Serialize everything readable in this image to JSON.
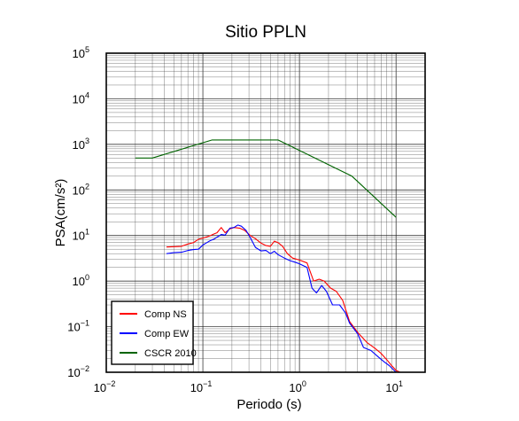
{
  "chart_data": {
    "type": "line",
    "title": "Sitio PPLN",
    "xlabel": "Periodo (s)",
    "ylabel": "PSA(cm/s²)",
    "xscale": "log",
    "yscale": "log",
    "xlim": [
      0.01,
      20
    ],
    "ylim": [
      0.01,
      100000
    ],
    "grid": true,
    "legend_position": "bottom-left",
    "x_ticks": [
      {
        "base": "10",
        "exp": "−2",
        "value": 0.01
      },
      {
        "base": "10",
        "exp": "−1",
        "value": 0.1
      },
      {
        "base": "10",
        "exp": "0",
        "value": 1
      },
      {
        "base": "10",
        "exp": "1",
        "value": 10
      }
    ],
    "y_ticks": [
      {
        "base": "10",
        "exp": "−2",
        "value": 0.01
      },
      {
        "base": "10",
        "exp": "−1",
        "value": 0.1
      },
      {
        "base": "10",
        "exp": "0",
        "value": 1
      },
      {
        "base": "10",
        "exp": "1",
        "value": 10
      },
      {
        "base": "10",
        "exp": "2",
        "value": 100
      },
      {
        "base": "10",
        "exp": "3",
        "value": 1000
      },
      {
        "base": "10",
        "exp": "4",
        "value": 10000
      },
      {
        "base": "10",
        "exp": "5",
        "value": 100000
      }
    ],
    "series": [
      {
        "name": "Comp NS",
        "color": "#ff0000",
        "points": [
          [
            0.042,
            5.6
          ],
          [
            0.05,
            5.7
          ],
          [
            0.06,
            5.8
          ],
          [
            0.07,
            6.5
          ],
          [
            0.08,
            7.0
          ],
          [
            0.09,
            8.3
          ],
          [
            0.1,
            8.8
          ],
          [
            0.11,
            9.3
          ],
          [
            0.12,
            10.0
          ],
          [
            0.13,
            10.8
          ],
          [
            0.14,
            11.5
          ],
          [
            0.155,
            15.0
          ],
          [
            0.17,
            11.5
          ],
          [
            0.19,
            14.0
          ],
          [
            0.21,
            15.0
          ],
          [
            0.24,
            14.5
          ],
          [
            0.27,
            13.0
          ],
          [
            0.31,
            10.0
          ],
          [
            0.35,
            8.5
          ],
          [
            0.4,
            6.8
          ],
          [
            0.45,
            6.0
          ],
          [
            0.5,
            5.8
          ],
          [
            0.55,
            7.5
          ],
          [
            0.6,
            7.0
          ],
          [
            0.67,
            5.8
          ],
          [
            0.75,
            4.0
          ],
          [
            0.85,
            3.2
          ],
          [
            1.0,
            2.9
          ],
          [
            1.2,
            2.5
          ],
          [
            1.4,
            1.0
          ],
          [
            1.6,
            1.1
          ],
          [
            1.8,
            1.0
          ],
          [
            2.1,
            0.7
          ],
          [
            2.4,
            0.6
          ],
          [
            2.8,
            0.38
          ],
          [
            3.3,
            0.13
          ],
          [
            4.0,
            0.075
          ],
          [
            5.0,
            0.045
          ],
          [
            6.0,
            0.034
          ],
          [
            7.0,
            0.026
          ],
          [
            8.0,
            0.019
          ],
          [
            9.0,
            0.014
          ],
          [
            10.0,
            0.011
          ],
          [
            11.0,
            0.01
          ]
        ]
      },
      {
        "name": "Comp EW",
        "color": "#0000ff",
        "points": [
          [
            0.042,
            4.0
          ],
          [
            0.05,
            4.2
          ],
          [
            0.06,
            4.3
          ],
          [
            0.07,
            4.7
          ],
          [
            0.08,
            4.9
          ],
          [
            0.09,
            5.0
          ],
          [
            0.1,
            6.2
          ],
          [
            0.11,
            7.0
          ],
          [
            0.12,
            7.8
          ],
          [
            0.13,
            8.3
          ],
          [
            0.14,
            9.2
          ],
          [
            0.155,
            10.5
          ],
          [
            0.17,
            10.2
          ],
          [
            0.19,
            14.5
          ],
          [
            0.21,
            15.0
          ],
          [
            0.23,
            17.0
          ],
          [
            0.25,
            16.0
          ],
          [
            0.28,
            13.0
          ],
          [
            0.31,
            9.0
          ],
          [
            0.35,
            5.5
          ],
          [
            0.4,
            4.6
          ],
          [
            0.45,
            4.7
          ],
          [
            0.5,
            4.0
          ],
          [
            0.55,
            4.5
          ],
          [
            0.6,
            3.8
          ],
          [
            0.7,
            3.2
          ],
          [
            0.8,
            2.8
          ],
          [
            0.9,
            2.6
          ],
          [
            1.0,
            2.4
          ],
          [
            1.2,
            2.0
          ],
          [
            1.35,
            0.7
          ],
          [
            1.5,
            0.55
          ],
          [
            1.7,
            0.8
          ],
          [
            1.9,
            0.6
          ],
          [
            2.2,
            0.3
          ],
          [
            2.6,
            0.3
          ],
          [
            3.0,
            0.2
          ],
          [
            3.3,
            0.12
          ],
          [
            4.0,
            0.07
          ],
          [
            4.6,
            0.035
          ],
          [
            5.5,
            0.03
          ],
          [
            6.5,
            0.022
          ],
          [
            7.5,
            0.017
          ],
          [
            8.5,
            0.014
          ],
          [
            10.0,
            0.01
          ]
        ]
      },
      {
        "name": "CSCR 2010",
        "color": "#006400",
        "points": [
          [
            0.02,
            500
          ],
          [
            0.03,
            500
          ],
          [
            0.125,
            1250
          ],
          [
            0.6,
            1250
          ],
          [
            3.5,
            200
          ],
          [
            10.0,
            25
          ]
        ]
      }
    ]
  }
}
